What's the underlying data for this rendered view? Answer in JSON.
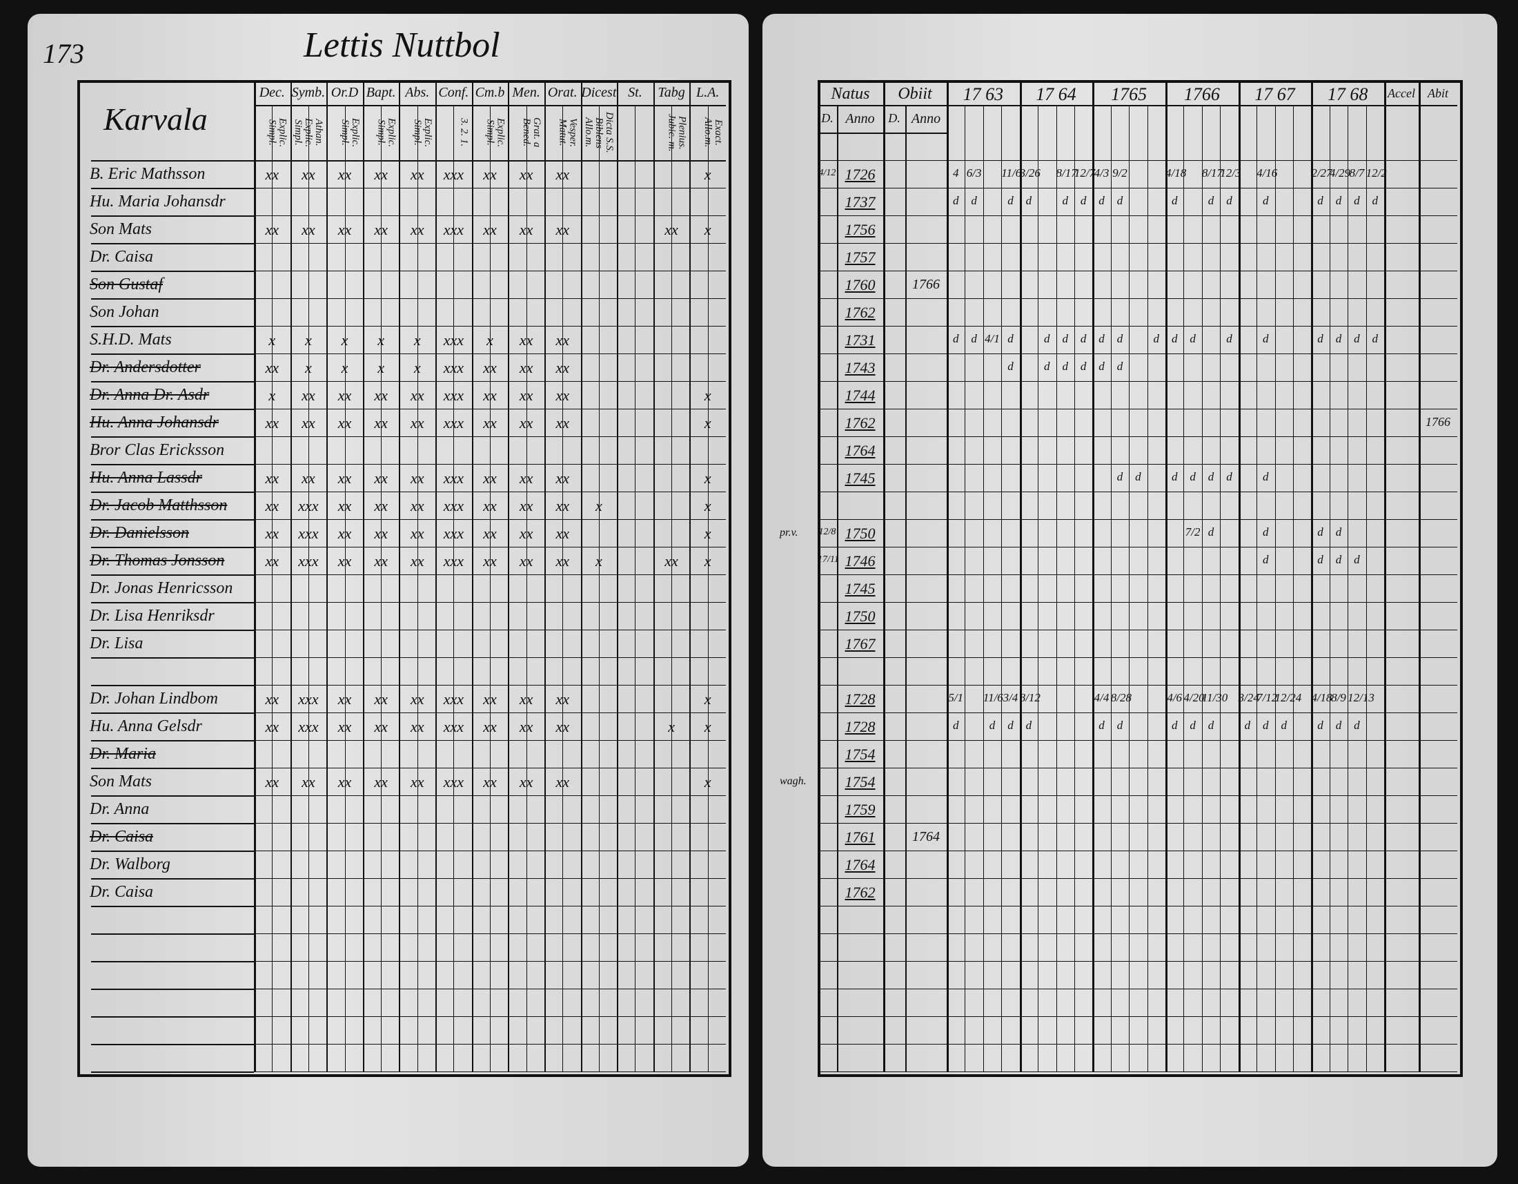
{
  "left_page": {
    "page_number": "173",
    "title": "Lettis Nuttbol",
    "section": "Karvala",
    "columns": [
      {
        "label": "Dec.",
        "sub": "Explic. Simpl."
      },
      {
        "label": "Symb.",
        "sub": "Athan. Explic. Simpl."
      },
      {
        "label": "Or.D",
        "sub": "Explic. Simpl."
      },
      {
        "label": "Bapt.",
        "sub": "Explic. Simpl."
      },
      {
        "label": "Abs.",
        "sub": "Explic. Simpl."
      },
      {
        "label": "Conf.",
        "sub": "3. 2. 1."
      },
      {
        "label": "Cm.b",
        "sub": "Explic. Simpl."
      },
      {
        "label": "Men.",
        "sub": "Grat. a Bened."
      },
      {
        "label": "Orat.",
        "sub": "Vesper. Matut."
      },
      {
        "label": "Dicest",
        "sub": "Dicta S.S. Biblens Allo.m."
      },
      {
        "label": "St."
      },
      {
        "label": "Tabg",
        "sub": "Plenius. Jubic. m."
      },
      {
        "label": "L.A.",
        "sub": "Exact. Allo.m."
      }
    ],
    "rows": [
      {
        "name": "B. Eric Mathsson",
        "marks": [
          "xx",
          "xx",
          "xx",
          "xx",
          "xx",
          "xxx",
          "xx",
          "xx",
          "xx",
          null,
          null,
          null,
          "x"
        ]
      },
      {
        "name": "Hu. Maria Johansdr"
      },
      {
        "name": "Son Mats",
        "marks": [
          "xx",
          "xx",
          "xx",
          "xx",
          "xx",
          "xxx",
          "xx",
          "xx",
          "xx",
          null,
          null,
          "xx",
          "x"
        ]
      },
      {
        "name": "Dr. Caisa"
      },
      {
        "name": "Son Gustaf",
        "struck": true
      },
      {
        "name": "Son Johan"
      },
      {
        "name": "S.H.D. Mats",
        "marks": [
          "x",
          "x",
          "x",
          "x",
          "x",
          "xxx",
          "x",
          "xx",
          "xx",
          null,
          null,
          null,
          null
        ]
      },
      {
        "name": "Dr. Andersdotter",
        "struck": true,
        "marks": [
          "xx",
          "x",
          "x",
          "x",
          "x",
          "xxx",
          "xx",
          "xx",
          "xx",
          null,
          null,
          null,
          null
        ]
      },
      {
        "name": "Dr. Anna Dr. Asdr",
        "struck": true,
        "marks": [
          "x",
          "xx",
          "xx",
          "xx",
          "xx",
          "xxx",
          "xx",
          "xx",
          "xx",
          null,
          null,
          null,
          "x"
        ]
      },
      {
        "name": "Hu. Anna Johansdr",
        "struck": true,
        "marks": [
          "xx",
          "xx",
          "xx",
          "xx",
          "xx",
          "xxx",
          "xx",
          "xx",
          "xx",
          null,
          null,
          null,
          "x"
        ]
      },
      {
        "name": "Bror Clas Ericksson"
      },
      {
        "name": "Hu. Anna Lassdr",
        "struck": true,
        "marks": [
          "xx",
          "xx",
          "xx",
          "xx",
          "xx",
          "xxx",
          "xx",
          "xx",
          "xx",
          null,
          null,
          null,
          "x"
        ]
      },
      {
        "name": "Dr. Jacob Matthsson",
        "struck": true,
        "marks": [
          "xx",
          "xxx",
          "xx",
          "xx",
          "xx",
          "xxx",
          "xx",
          "xx",
          "xx",
          "x",
          null,
          null,
          "x"
        ]
      },
      {
        "name": "Dr. Danielsson",
        "struck": true,
        "marks": [
          "xx",
          "xxx",
          "xx",
          "xx",
          "xx",
          "xxx",
          "xx",
          "xx",
          "xx",
          null,
          null,
          null,
          "x"
        ]
      },
      {
        "name": "Dr. Thomas Jonsson",
        "struck": true,
        "marks": [
          "xx",
          "xxx",
          "xx",
          "xx",
          "xx",
          "xxx",
          "xx",
          "xx",
          "xx",
          "x",
          null,
          "xx",
          "x"
        ]
      },
      {
        "name": "Dr. Jonas Henricsson"
      },
      {
        "name": "Dr. Lisa Henriksdr"
      },
      {
        "name": "Dr. Lisa"
      },
      {},
      {
        "name": "Dr. Johan Lindbom",
        "marks": [
          "xx",
          "xxx",
          "xx",
          "xx",
          "xx",
          "xxx",
          "xx",
          "xx",
          "xx",
          null,
          null,
          null,
          "x"
        ]
      },
      {
        "name": "Hu. Anna Gelsdr",
        "marks": [
          "xx",
          "xxx",
          "xx",
          "xx",
          "xx",
          "xxx",
          "xx",
          "xx",
          "xx",
          null,
          null,
          "x",
          "x"
        ]
      },
      {
        "name": "Dr. Maria",
        "struck": true
      },
      {
        "name": "Son Mats",
        "marks": [
          "xx",
          "xx",
          "xx",
          "xx",
          "xx",
          "xxx",
          "xx",
          "xx",
          "xx",
          null,
          null,
          null,
          "x"
        ]
      },
      {
        "name": "Dr. Anna"
      },
      {
        "name": "Dr. Caisa",
        "struck": true
      },
      {
        "name": "Dr. Walborg"
      },
      {
        "name": "Dr. Caisa"
      }
    ]
  },
  "right_page": {
    "headers": {
      "natus": "Natus",
      "obiit": "Obiit",
      "day": "D.",
      "anno": "Anno",
      "accel": "Accel",
      "abit": "Abit"
    },
    "years": [
      "17 63",
      "17 64",
      "1765",
      "1766",
      "17 67",
      "17 68"
    ],
    "rows": [
      {
        "day": "4/12",
        "anno": "1726",
        "cells": [
          "4",
          "6/3",
          null,
          "11/6",
          "3/26",
          null,
          "8/17",
          "12/7",
          "4/3",
          "9/2",
          null,
          null,
          "4/18",
          null,
          "8/17",
          "12/3",
          null,
          "4/16",
          null,
          null,
          "2/27",
          "4/29",
          "8/7",
          "12/2"
        ]
      },
      {
        "anno": "1737",
        "cells": [
          "d",
          "d",
          null,
          "d",
          "d",
          null,
          "d",
          "d",
          "d",
          "d",
          null,
          null,
          "d",
          null,
          "d",
          "d",
          null,
          "d",
          null,
          null,
          "d",
          "d",
          "d",
          "d"
        ]
      },
      {
        "anno": "1756"
      },
      {
        "anno": "1757"
      },
      {
        "anno": "1760",
        "obiit": "1766"
      },
      {
        "anno": "1762"
      },
      {
        "anno": "1731",
        "cells": [
          "d",
          "d",
          "4/1",
          "d",
          null,
          "d",
          "d",
          "d",
          "d",
          "d",
          null,
          "d",
          "d",
          "d",
          null,
          "d",
          null,
          "d",
          null,
          null,
          "d",
          "d",
          "d",
          "d"
        ]
      },
      {
        "anno": "1743",
        "cells": [
          null,
          null,
          null,
          "d",
          null,
          "d",
          "d",
          "d",
          "d",
          "d",
          null,
          null,
          null,
          null,
          null,
          null,
          null,
          null,
          null,
          null,
          null,
          null,
          null,
          null
        ]
      },
      {
        "anno": "1744"
      },
      {
        "anno": "1762",
        "abit": "1766"
      },
      {
        "anno": "1764"
      },
      {
        "anno": "1745",
        "cells": [
          null,
          null,
          null,
          null,
          null,
          null,
          null,
          null,
          null,
          "d",
          "d",
          null,
          "d",
          "d",
          "d",
          "d",
          null,
          "d",
          null,
          null,
          null,
          null,
          null,
          null
        ]
      },
      {},
      {
        "note": "pr.v.",
        "day": "12/8",
        "anno": "1750",
        "cells": [
          null,
          null,
          null,
          null,
          null,
          null,
          null,
          null,
          null,
          null,
          null,
          null,
          null,
          "7/2",
          "d",
          null,
          null,
          "d",
          null,
          null,
          "d",
          "d",
          null,
          null
        ]
      },
      {
        "day": "17/11",
        "anno": "1746",
        "cells": [
          null,
          null,
          null,
          null,
          null,
          null,
          null,
          null,
          null,
          null,
          null,
          null,
          null,
          null,
          null,
          null,
          null,
          "d",
          null,
          null,
          "d",
          "d",
          "d",
          null
        ]
      },
      {
        "anno": "1745"
      },
      {
        "anno": "1750"
      },
      {
        "anno": "1767"
      },
      {},
      {
        "anno": "1728",
        "cells": [
          "5/1",
          null,
          "11/6",
          "3/4",
          "8/12",
          null,
          null,
          null,
          "4/4",
          "8/28",
          null,
          null,
          "4/6",
          "4/20",
          "11/30",
          null,
          "3/24",
          "7/12",
          "12/24",
          null,
          "4/18",
          "8/9",
          "12/13",
          null
        ]
      },
      {
        "anno": "1728",
        "cells": [
          "d",
          null,
          "d",
          "d",
          "d",
          null,
          null,
          null,
          "d",
          "d",
          null,
          null,
          "d",
          "d",
          "d",
          null,
          "d",
          "d",
          "d",
          null,
          "d",
          "d",
          "d",
          null
        ]
      },
      {
        "anno": "1754"
      },
      {
        "note": "wagh.",
        "anno": "1754"
      },
      {
        "anno": "1759"
      },
      {
        "anno": "1761",
        "obiit": "1764"
      },
      {
        "anno": "1764"
      },
      {
        "anno": "1762"
      }
    ]
  }
}
